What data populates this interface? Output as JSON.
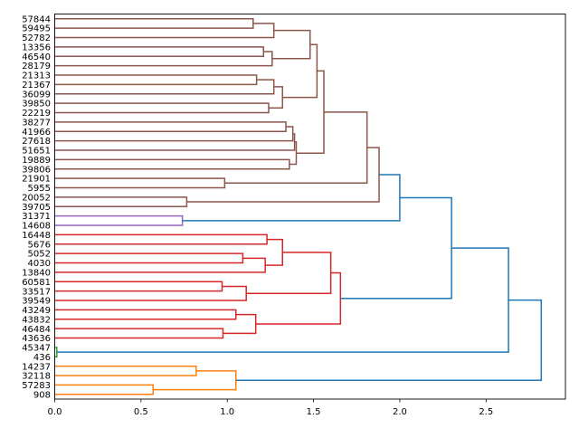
{
  "chart_data": {
    "type": "dendrogram",
    "orientation": "left-to-right",
    "title": "",
    "xlabel": "",
    "ylabel": "",
    "xlim": [
      0,
      2.96
    ],
    "xticks": [
      "0.0",
      "0.5",
      "1.0",
      "1.5",
      "2.0",
      "2.5"
    ],
    "xtick_values": [
      0,
      0.5,
      1.0,
      1.5,
      2.0,
      2.5
    ],
    "colors": {
      "b": "#8c564b",
      "p": "#9467bd",
      "r": "#d62728",
      "g": "#2ca02c",
      "o": "#ff7f0e",
      "blue": "#1f77b4"
    },
    "leaves": [
      "57844",
      "59495",
      "52782",
      "13356",
      "46540",
      "28179",
      "21313",
      "21367",
      "36099",
      "39850",
      "22219",
      "38277",
      "41966",
      "27618",
      "51651",
      "19889",
      "39806",
      "21901",
      "5955",
      "20052",
      "39705",
      "31371",
      "14608",
      "16448",
      "5676",
      "5052",
      "4030",
      "13840",
      "60581",
      "33517",
      "39549",
      "43249",
      "43832",
      "46484",
      "43636",
      "45347",
      "436",
      "14237",
      "32118",
      "57283",
      "908"
    ],
    "tree": [
      [
        [
          [
            [
              [
                [
                  [
                    [
                      [
                        [
                          [
                            "57844",
                            "59495",
                            1.15,
                            "b"
                          ],
                          "52782",
                          1.27,
                          "b"
                        ],
                        [
                          [
                            "13356",
                            "46540",
                            1.21,
                            "b"
                          ],
                          "28179",
                          1.26,
                          "b"
                        ],
                        1.48,
                        "b"
                      ],
                      [
                        [
                          [
                            "21313",
                            "21367",
                            1.17,
                            "b"
                          ],
                          "36099",
                          1.27,
                          "b"
                        ],
                        [
                          "39850",
                          "22219",
                          1.24,
                          "b"
                        ],
                        1.32,
                        "b"
                      ],
                      1.52,
                      "b"
                    ],
                    [
                      [
                        [
                          [
                            "38277",
                            "41966",
                            1.34,
                            "b"
                          ],
                          "27618",
                          1.38,
                          "b"
                        ],
                        "51651",
                        1.39,
                        "b"
                      ],
                      [
                        "19889",
                        "39806",
                        1.36,
                        "b"
                      ],
                      1.4,
                      "b"
                    ],
                    1.56,
                    "b"
                  ],
                  [
                    "21901",
                    "5955",
                    0.985,
                    "b"
                  ],
                  1.81,
                  "b"
                ],
                [
                  "20052",
                  "39705",
                  0.765,
                  "b"
                ],
                1.88,
                "b"
              ],
              [
                "31371",
                "14608",
                0.74,
                "p"
              ],
              2.0,
              "blue"
            ],
            [
              [
                [
                  [
                    "16448",
                    "5676",
                    1.23,
                    "r"
                  ],
                  [
                    [
                      "5052",
                      "4030",
                      1.09,
                      "r"
                    ],
                    "13840",
                    1.22,
                    "r"
                  ],
                  1.32,
                  "r"
                ],
                [
                  [
                    "60581",
                    "33517",
                    0.97,
                    "r"
                  ],
                  "39549",
                  1.11,
                  "r"
                ],
                1.6,
                "r"
              ],
              [
                [
                  "43249",
                  "43832",
                  1.05,
                  "r"
                ],
                [
                  "46484",
                  "43636",
                  0.975,
                  "r"
                ],
                1.165,
                "r"
              ],
              1.656,
              "r"
            ],
            2.3,
            "blue"
          ],
          [
            "45347",
            "436",
            0.012,
            "g"
          ],
          2.63,
          "blue"
        ],
        [
          [
            "14237",
            "32118",
            0.82,
            "o"
          ],
          [
            "57283",
            "908",
            0.57,
            "o"
          ],
          1.05,
          "o"
        ],
        2.82,
        "blue"
      ]
    ]
  }
}
